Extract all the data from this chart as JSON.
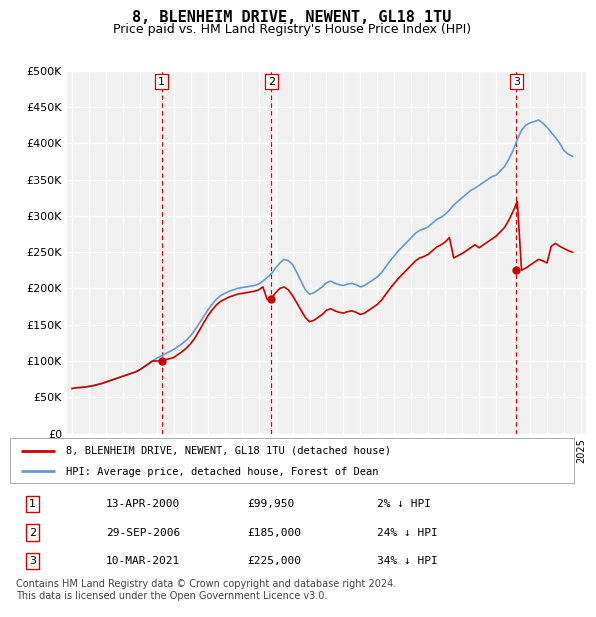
{
  "title": "8, BLENHEIM DRIVE, NEWENT, GL18 1TU",
  "subtitle": "Price paid vs. HM Land Registry's House Price Index (HPI)",
  "ylim": [
    0,
    500000
  ],
  "yticks": [
    0,
    50000,
    100000,
    150000,
    200000,
    250000,
    300000,
    350000,
    400000,
    450000,
    500000
  ],
  "ytick_labels": [
    "£0",
    "£50K",
    "£100K",
    "£150K",
    "£200K",
    "£250K",
    "£300K",
    "£350K",
    "£400K",
    "£450K",
    "£500K"
  ],
  "background_color": "#ffffff",
  "plot_bg_color": "#f0f0f0",
  "grid_color": "#ffffff",
  "red_line_color": "#cc0000",
  "blue_line_color": "#6699cc",
  "vline_color": "#cc0000",
  "transaction_dates": [
    2000.28,
    2006.74,
    2021.19
  ],
  "transaction_prices": [
    99950,
    185000,
    225000
  ],
  "transaction_labels": [
    "1",
    "2",
    "3"
  ],
  "legend_red": "8, BLENHEIM DRIVE, NEWENT, GL18 1TU (detached house)",
  "legend_blue": "HPI: Average price, detached house, Forest of Dean",
  "table_data": [
    [
      "1",
      "13-APR-2000",
      "£99,950",
      "2% ↓ HPI"
    ],
    [
      "2",
      "29-SEP-2006",
      "£185,000",
      "24% ↓ HPI"
    ],
    [
      "3",
      "10-MAR-2021",
      "£225,000",
      "34% ↓ HPI"
    ]
  ],
  "footer": "Contains HM Land Registry data © Crown copyright and database right 2024.\nThis data is licensed under the Open Government Licence v3.0.",
  "hpi_years": [
    1995.0,
    1995.25,
    1995.5,
    1995.75,
    1996.0,
    1996.25,
    1996.5,
    1996.75,
    1997.0,
    1997.25,
    1997.5,
    1997.75,
    1998.0,
    1998.25,
    1998.5,
    1998.75,
    1999.0,
    1999.25,
    1999.5,
    1999.75,
    2000.0,
    2000.25,
    2000.5,
    2000.75,
    2001.0,
    2001.25,
    2001.5,
    2001.75,
    2002.0,
    2002.25,
    2002.5,
    2002.75,
    2003.0,
    2003.25,
    2003.5,
    2003.75,
    2004.0,
    2004.25,
    2004.5,
    2004.75,
    2005.0,
    2005.25,
    2005.5,
    2005.75,
    2006.0,
    2006.25,
    2006.5,
    2006.75,
    2007.0,
    2007.25,
    2007.5,
    2007.75,
    2008.0,
    2008.25,
    2008.5,
    2008.75,
    2009.0,
    2009.25,
    2009.5,
    2009.75,
    2010.0,
    2010.25,
    2010.5,
    2010.75,
    2011.0,
    2011.25,
    2011.5,
    2011.75,
    2012.0,
    2012.25,
    2012.5,
    2012.75,
    2013.0,
    2013.25,
    2013.5,
    2013.75,
    2014.0,
    2014.25,
    2014.5,
    2014.75,
    2015.0,
    2015.25,
    2015.5,
    2015.75,
    2016.0,
    2016.25,
    2016.5,
    2016.75,
    2017.0,
    2017.25,
    2017.5,
    2017.75,
    2018.0,
    2018.25,
    2018.5,
    2018.75,
    2019.0,
    2019.25,
    2019.5,
    2019.75,
    2020.0,
    2020.25,
    2020.5,
    2020.75,
    2021.0,
    2021.25,
    2021.5,
    2021.75,
    2022.0,
    2022.25,
    2022.5,
    2022.75,
    2023.0,
    2023.25,
    2023.5,
    2023.75,
    2024.0,
    2024.25,
    2024.5
  ],
  "hpi_values": [
    62000,
    63000,
    63500,
    64000,
    65000,
    66000,
    67500,
    69000,
    71000,
    73000,
    75000,
    77000,
    79000,
    81000,
    83000,
    85000,
    88000,
    92000,
    96000,
    100000,
    104000,
    107000,
    110000,
    113000,
    116000,
    120000,
    124000,
    129000,
    135000,
    143000,
    152000,
    161000,
    170000,
    178000,
    185000,
    190000,
    193000,
    196000,
    198000,
    200000,
    201000,
    202000,
    203000,
    204000,
    206000,
    210000,
    215000,
    220000,
    228000,
    235000,
    240000,
    238000,
    233000,
    222000,
    210000,
    198000,
    192000,
    194000,
    198000,
    202000,
    208000,
    210000,
    207000,
    205000,
    204000,
    206000,
    207000,
    205000,
    202000,
    204000,
    208000,
    212000,
    216000,
    222000,
    230000,
    238000,
    245000,
    252000,
    258000,
    264000,
    270000,
    276000,
    280000,
    282000,
    285000,
    290000,
    295000,
    298000,
    302000,
    308000,
    315000,
    320000,
    325000,
    330000,
    335000,
    338000,
    342000,
    346000,
    350000,
    354000,
    356000,
    362000,
    368000,
    378000,
    390000,
    405000,
    418000,
    425000,
    428000,
    430000,
    432000,
    428000,
    422000,
    415000,
    408000,
    400000,
    390000,
    385000,
    382000
  ],
  "red_years": [
    1995.0,
    1995.25,
    1995.5,
    1995.75,
    1996.0,
    1996.25,
    1996.5,
    1996.75,
    1997.0,
    1997.25,
    1997.5,
    1997.75,
    1998.0,
    1998.25,
    1998.5,
    1998.75,
    1999.0,
    1999.25,
    1999.5,
    1999.75,
    2000.0,
    2000.25,
    2000.5,
    2000.75,
    2001.0,
    2001.25,
    2001.5,
    2001.75,
    2002.0,
    2002.25,
    2002.5,
    2002.75,
    2003.0,
    2003.25,
    2003.5,
    2003.75,
    2004.0,
    2004.25,
    2004.5,
    2004.75,
    2005.0,
    2005.25,
    2005.5,
    2005.75,
    2006.0,
    2006.25,
    2006.5,
    2006.75,
    2007.0,
    2007.25,
    2007.5,
    2007.75,
    2008.0,
    2008.25,
    2008.5,
    2008.75,
    2009.0,
    2009.25,
    2009.5,
    2009.75,
    2010.0,
    2010.25,
    2010.5,
    2010.75,
    2011.0,
    2011.25,
    2011.5,
    2011.75,
    2012.0,
    2012.25,
    2012.5,
    2012.75,
    2013.0,
    2013.25,
    2013.5,
    2013.75,
    2014.0,
    2014.25,
    2014.5,
    2014.75,
    2015.0,
    2015.25,
    2015.5,
    2015.75,
    2016.0,
    2016.25,
    2016.5,
    2016.75,
    2017.0,
    2017.25,
    2017.5,
    2017.75,
    2018.0,
    2018.25,
    2018.5,
    2018.75,
    2019.0,
    2019.25,
    2019.5,
    2019.75,
    2020.0,
    2020.25,
    2020.5,
    2020.75,
    2021.0,
    2021.25,
    2021.5,
    2021.75,
    2022.0,
    2022.25,
    2022.5,
    2022.75,
    2023.0,
    2023.25,
    2023.5,
    2023.75,
    2024.0,
    2024.25,
    2024.5
  ],
  "red_values": [
    62000,
    63000,
    63500,
    64000,
    65000,
    66000,
    67500,
    69000,
    71000,
    73000,
    75000,
    77000,
    79000,
    81000,
    83000,
    85000,
    88000,
    92000,
    96000,
    100000,
    99950,
    101000,
    102000,
    103000,
    105000,
    109000,
    113000,
    118000,
    124000,
    132000,
    142000,
    152000,
    162000,
    170000,
    177000,
    182000,
    185000,
    188000,
    190000,
    192000,
    193000,
    194000,
    195000,
    196000,
    198000,
    202000,
    185000,
    186000,
    194000,
    200000,
    202000,
    198000,
    190000,
    180000,
    170000,
    160000,
    154000,
    156000,
    160000,
    164000,
    170000,
    172000,
    169000,
    167000,
    166000,
    168000,
    169000,
    167000,
    164000,
    166000,
    170000,
    174000,
    178000,
    184000,
    192000,
    200000,
    207000,
    214000,
    220000,
    226000,
    232000,
    238000,
    242000,
    244000,
    247000,
    252000,
    257000,
    260000,
    264000,
    270000,
    242000,
    245000,
    248000,
    252000,
    256000,
    260000,
    256000,
    260000,
    264000,
    268000,
    272000,
    278000,
    284000,
    294000,
    306000,
    320000,
    225000,
    228000,
    232000,
    236000,
    240000,
    238000,
    235000,
    258000,
    262000,
    258000,
    255000,
    252000,
    250000
  ]
}
